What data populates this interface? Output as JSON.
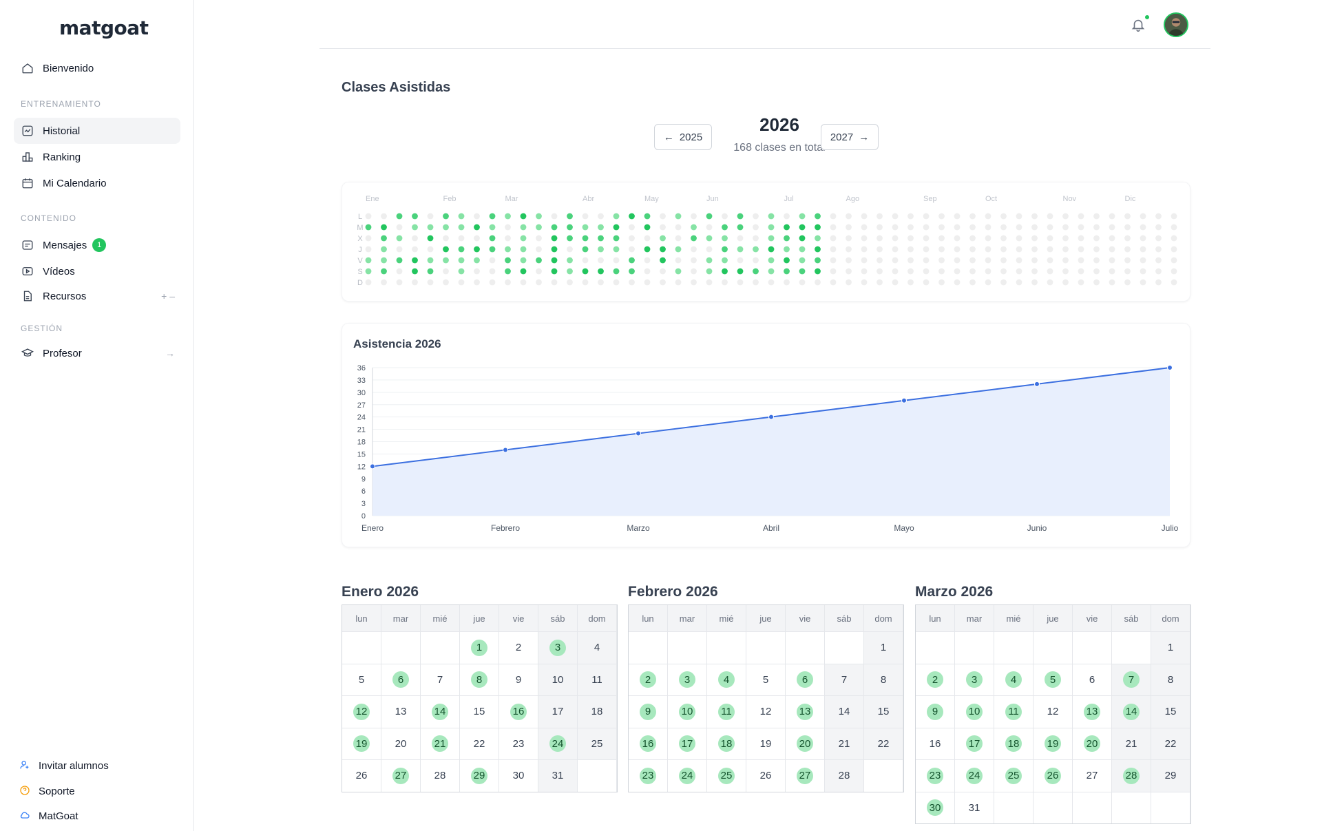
{
  "sidebar": {
    "logo": "matgoat",
    "welcome": "Bienvenido",
    "sections": {
      "training": "ENTRENAMIENTO",
      "content": "CONTENIDO",
      "management": "GESTIÓN"
    },
    "items": {
      "historial": "Historial",
      "ranking": "Ranking",
      "calendario": "Mi Calendario",
      "mensajes": "Mensajes",
      "mensajes_badge": "1",
      "videos": "Vídeos",
      "recursos": "Recursos",
      "recursos_trail": "+ –",
      "profesor": "Profesor",
      "profesor_trail": "→"
    },
    "footer": {
      "invitar": "Invitar alumnos",
      "soporte": "Soporte",
      "matgoat": "MatGoat"
    }
  },
  "page": {
    "title": "Clases Asistidas",
    "prev_year": "2025",
    "next_year": "2027",
    "year": "2026",
    "total": "168 clases en total"
  },
  "heatmap": {
    "months": [
      "Ene",
      "Feb",
      "Mar",
      "Abr",
      "May",
      "Jun",
      "Jul",
      "Ago",
      "Sep",
      "Oct",
      "Nov",
      "Dic"
    ],
    "days": [
      "L",
      "M",
      "X",
      "J",
      "V",
      "S",
      "D"
    ]
  },
  "chart_data": {
    "type": "area",
    "title": "Asistencia 2026",
    "categories": [
      "Enero",
      "Febrero",
      "Marzo",
      "Abril",
      "Mayo",
      "Junio",
      "Julio"
    ],
    "values": [
      12,
      16,
      20,
      24,
      28,
      32,
      36
    ],
    "ylim": [
      0,
      36
    ],
    "yticks": [
      0,
      3,
      6,
      9,
      12,
      15,
      18,
      21,
      24,
      27,
      30,
      33,
      36
    ],
    "grid": true,
    "colors": {
      "line": "#3b6fe0",
      "fill": "#e8effd"
    }
  },
  "calendars": [
    {
      "title": "Enero 2026",
      "weekdays": [
        "lun",
        "mar",
        "mié",
        "jue",
        "vie",
        "sáb",
        "dom"
      ],
      "offset": 3,
      "days": 31,
      "attended": [
        1,
        3,
        6,
        8,
        12,
        14,
        16,
        19,
        21,
        24,
        27,
        29
      ]
    },
    {
      "title": "Febrero 2026",
      "weekdays": [
        "lun",
        "mar",
        "mié",
        "jue",
        "vie",
        "sáb",
        "dom"
      ],
      "offset": 6,
      "days": 28,
      "attended": [
        2,
        3,
        4,
        6,
        9,
        10,
        11,
        13,
        16,
        17,
        18,
        20,
        23,
        24,
        25,
        27
      ]
    },
    {
      "title": "Marzo 2026",
      "weekdays": [
        "lun",
        "mar",
        "mié",
        "jue",
        "vie",
        "sáb",
        "dom"
      ],
      "offset": 6,
      "days": 31,
      "attended": [
        2,
        3,
        4,
        5,
        7,
        9,
        10,
        11,
        13,
        14,
        17,
        18,
        19,
        20,
        23,
        24,
        25,
        26,
        28,
        30
      ]
    }
  ]
}
